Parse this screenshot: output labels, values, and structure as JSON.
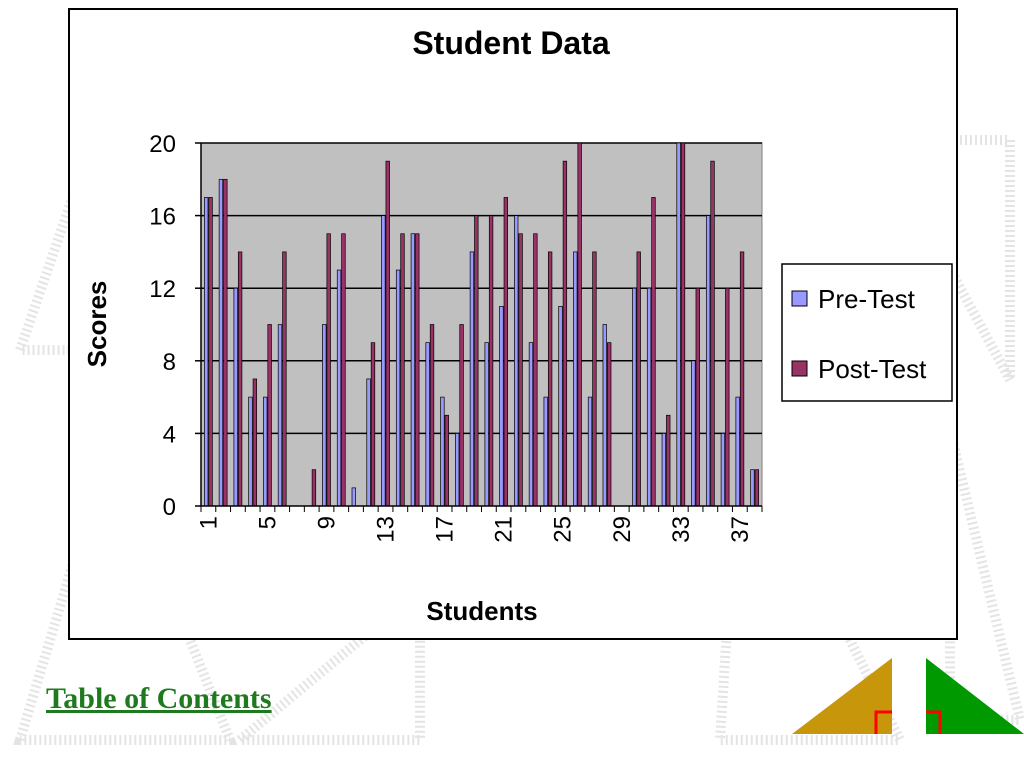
{
  "chart_data": {
    "type": "bar",
    "title": "Student Data",
    "xlabel": "Students",
    "ylabel": "Scores",
    "ylim": [
      0,
      20
    ],
    "yticks": [
      0,
      4,
      8,
      12,
      16,
      20
    ],
    "grid": true,
    "legend_position": "right",
    "categories": [
      1,
      2,
      3,
      4,
      5,
      6,
      7,
      8,
      9,
      10,
      11,
      12,
      13,
      14,
      15,
      16,
      17,
      18,
      19,
      20,
      21,
      22,
      23,
      24,
      25,
      26,
      27,
      28,
      29,
      30,
      31,
      32,
      33,
      34,
      35,
      36,
      37,
      38
    ],
    "tick_labels": [
      "1",
      "5",
      "9",
      "13",
      "17",
      "21",
      "25",
      "29",
      "33",
      "37"
    ],
    "series": [
      {
        "name": "Pre-Test",
        "color": "#9999ff",
        "values": [
          17,
          18,
          12,
          6,
          6,
          10,
          0,
          0,
          10,
          13,
          1,
          7,
          16,
          13,
          15,
          9,
          6,
          4,
          14,
          9,
          11,
          16,
          9,
          6,
          11,
          14,
          6,
          10,
          0,
          12,
          12,
          4,
          20,
          8,
          16,
          4,
          6,
          2
        ]
      },
      {
        "name": "Post-Test",
        "color": "#993366",
        "values": [
          17,
          18,
          14,
          7,
          10,
          14,
          0,
          2,
          15,
          15,
          0,
          9,
          19,
          15,
          15,
          10,
          5,
          10,
          16,
          16,
          17,
          15,
          15,
          14,
          19,
          20,
          14,
          9,
          0,
          14,
          17,
          5,
          20,
          12,
          19,
          12,
          14,
          2
        ]
      }
    ],
    "plot_background": "#c0c0c0"
  },
  "nav": {
    "toc_label": "Table of Contents",
    "back_color": "#c8960a",
    "forward_color": "#009900",
    "marker_color": "#ff0000"
  }
}
